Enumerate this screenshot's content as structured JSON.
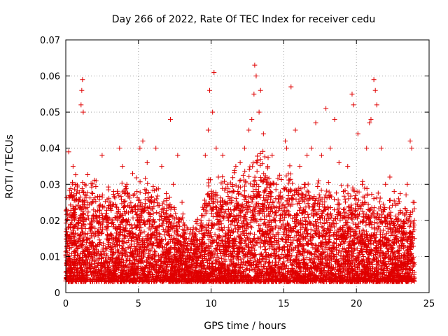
{
  "chart_data": {
    "type": "scatter",
    "title": "Day 266 of 2022, Rate Of TEC Index for receiver cedu",
    "xlabel": "GPS time / hours",
    "ylabel": "ROTI / TECUs",
    "xlim": [
      0,
      25
    ],
    "ylim": [
      0,
      0.07
    ],
    "xticks": [
      0,
      5,
      10,
      15,
      20,
      25
    ],
    "xtick_labels": [
      "0",
      "5",
      "10",
      "15",
      "20",
      "25"
    ],
    "yticks": [
      0,
      0.01,
      0.02,
      0.03,
      0.04,
      0.05,
      0.06,
      0.07
    ],
    "ytick_labels": [
      "0",
      "0.01",
      "0.02",
      "0.03",
      "0.04",
      "0.05",
      "0.06",
      "0.07"
    ],
    "grid": true,
    "marker": "+",
    "color": "#e00000",
    "series": [
      {
        "name": "ROTI",
        "x": [
          0.05,
          0.2,
          0.3,
          0.5,
          0.7,
          0.9,
          1.05,
          1.1,
          1.15,
          1.2,
          1.3,
          1.5,
          1.8,
          2.1,
          2.5,
          2.9,
          3.3,
          3.7,
          3.9,
          4.2,
          4.6,
          4.9,
          5.1,
          5.3,
          5.6,
          5.9,
          6.2,
          6.6,
          6.9,
          7.2,
          7.4,
          7.7,
          8.0,
          8.3,
          8.7,
          9.0,
          9.3,
          9.6,
          9.8,
          9.9,
          10.1,
          10.2,
          10.35,
          10.5,
          10.8,
          11.1,
          11.4,
          11.7,
          12.0,
          12.3,
          12.6,
          12.8,
          12.95,
          13.0,
          13.1,
          13.3,
          13.4,
          13.6,
          13.9,
          14.2,
          14.5,
          14.8,
          15.1,
          15.2,
          15.5,
          15.8,
          16.1,
          16.4,
          16.6,
          16.9,
          17.2,
          17.6,
          17.9,
          18.2,
          18.5,
          18.8,
          19.1,
          19.4,
          19.7,
          19.8,
          20.1,
          20.4,
          20.7,
          20.9,
          21.0,
          21.2,
          21.3,
          21.4,
          21.7,
          22.0,
          22.3,
          22.6,
          22.9,
          23.2,
          23.5,
          23.7,
          23.8,
          23.9
        ],
        "y": [
          0.008,
          0.039,
          0.015,
          0.035,
          0.03,
          0.02,
          0.052,
          0.056,
          0.059,
          0.05,
          0.03,
          0.025,
          0.018,
          0.012,
          0.038,
          0.02,
          0.028,
          0.04,
          0.035,
          0.03,
          0.033,
          0.028,
          0.04,
          0.042,
          0.036,
          0.025,
          0.04,
          0.035,
          0.022,
          0.048,
          0.03,
          0.038,
          0.025,
          0.015,
          0.01,
          0.012,
          0.02,
          0.038,
          0.045,
          0.056,
          0.05,
          0.061,
          0.04,
          0.032,
          0.038,
          0.03,
          0.025,
          0.035,
          0.036,
          0.04,
          0.045,
          0.048,
          0.055,
          0.063,
          0.06,
          0.05,
          0.056,
          0.044,
          0.035,
          0.038,
          0.03,
          0.026,
          0.042,
          0.04,
          0.057,
          0.045,
          0.035,
          0.03,
          0.038,
          0.04,
          0.047,
          0.038,
          0.051,
          0.04,
          0.048,
          0.036,
          0.028,
          0.035,
          0.055,
          0.052,
          0.044,
          0.03,
          0.04,
          0.047,
          0.048,
          0.059,
          0.056,
          0.052,
          0.04,
          0.03,
          0.032,
          0.028,
          0.026,
          0.022,
          0.03,
          0.042,
          0.04,
          0.025
        ]
      }
    ]
  }
}
